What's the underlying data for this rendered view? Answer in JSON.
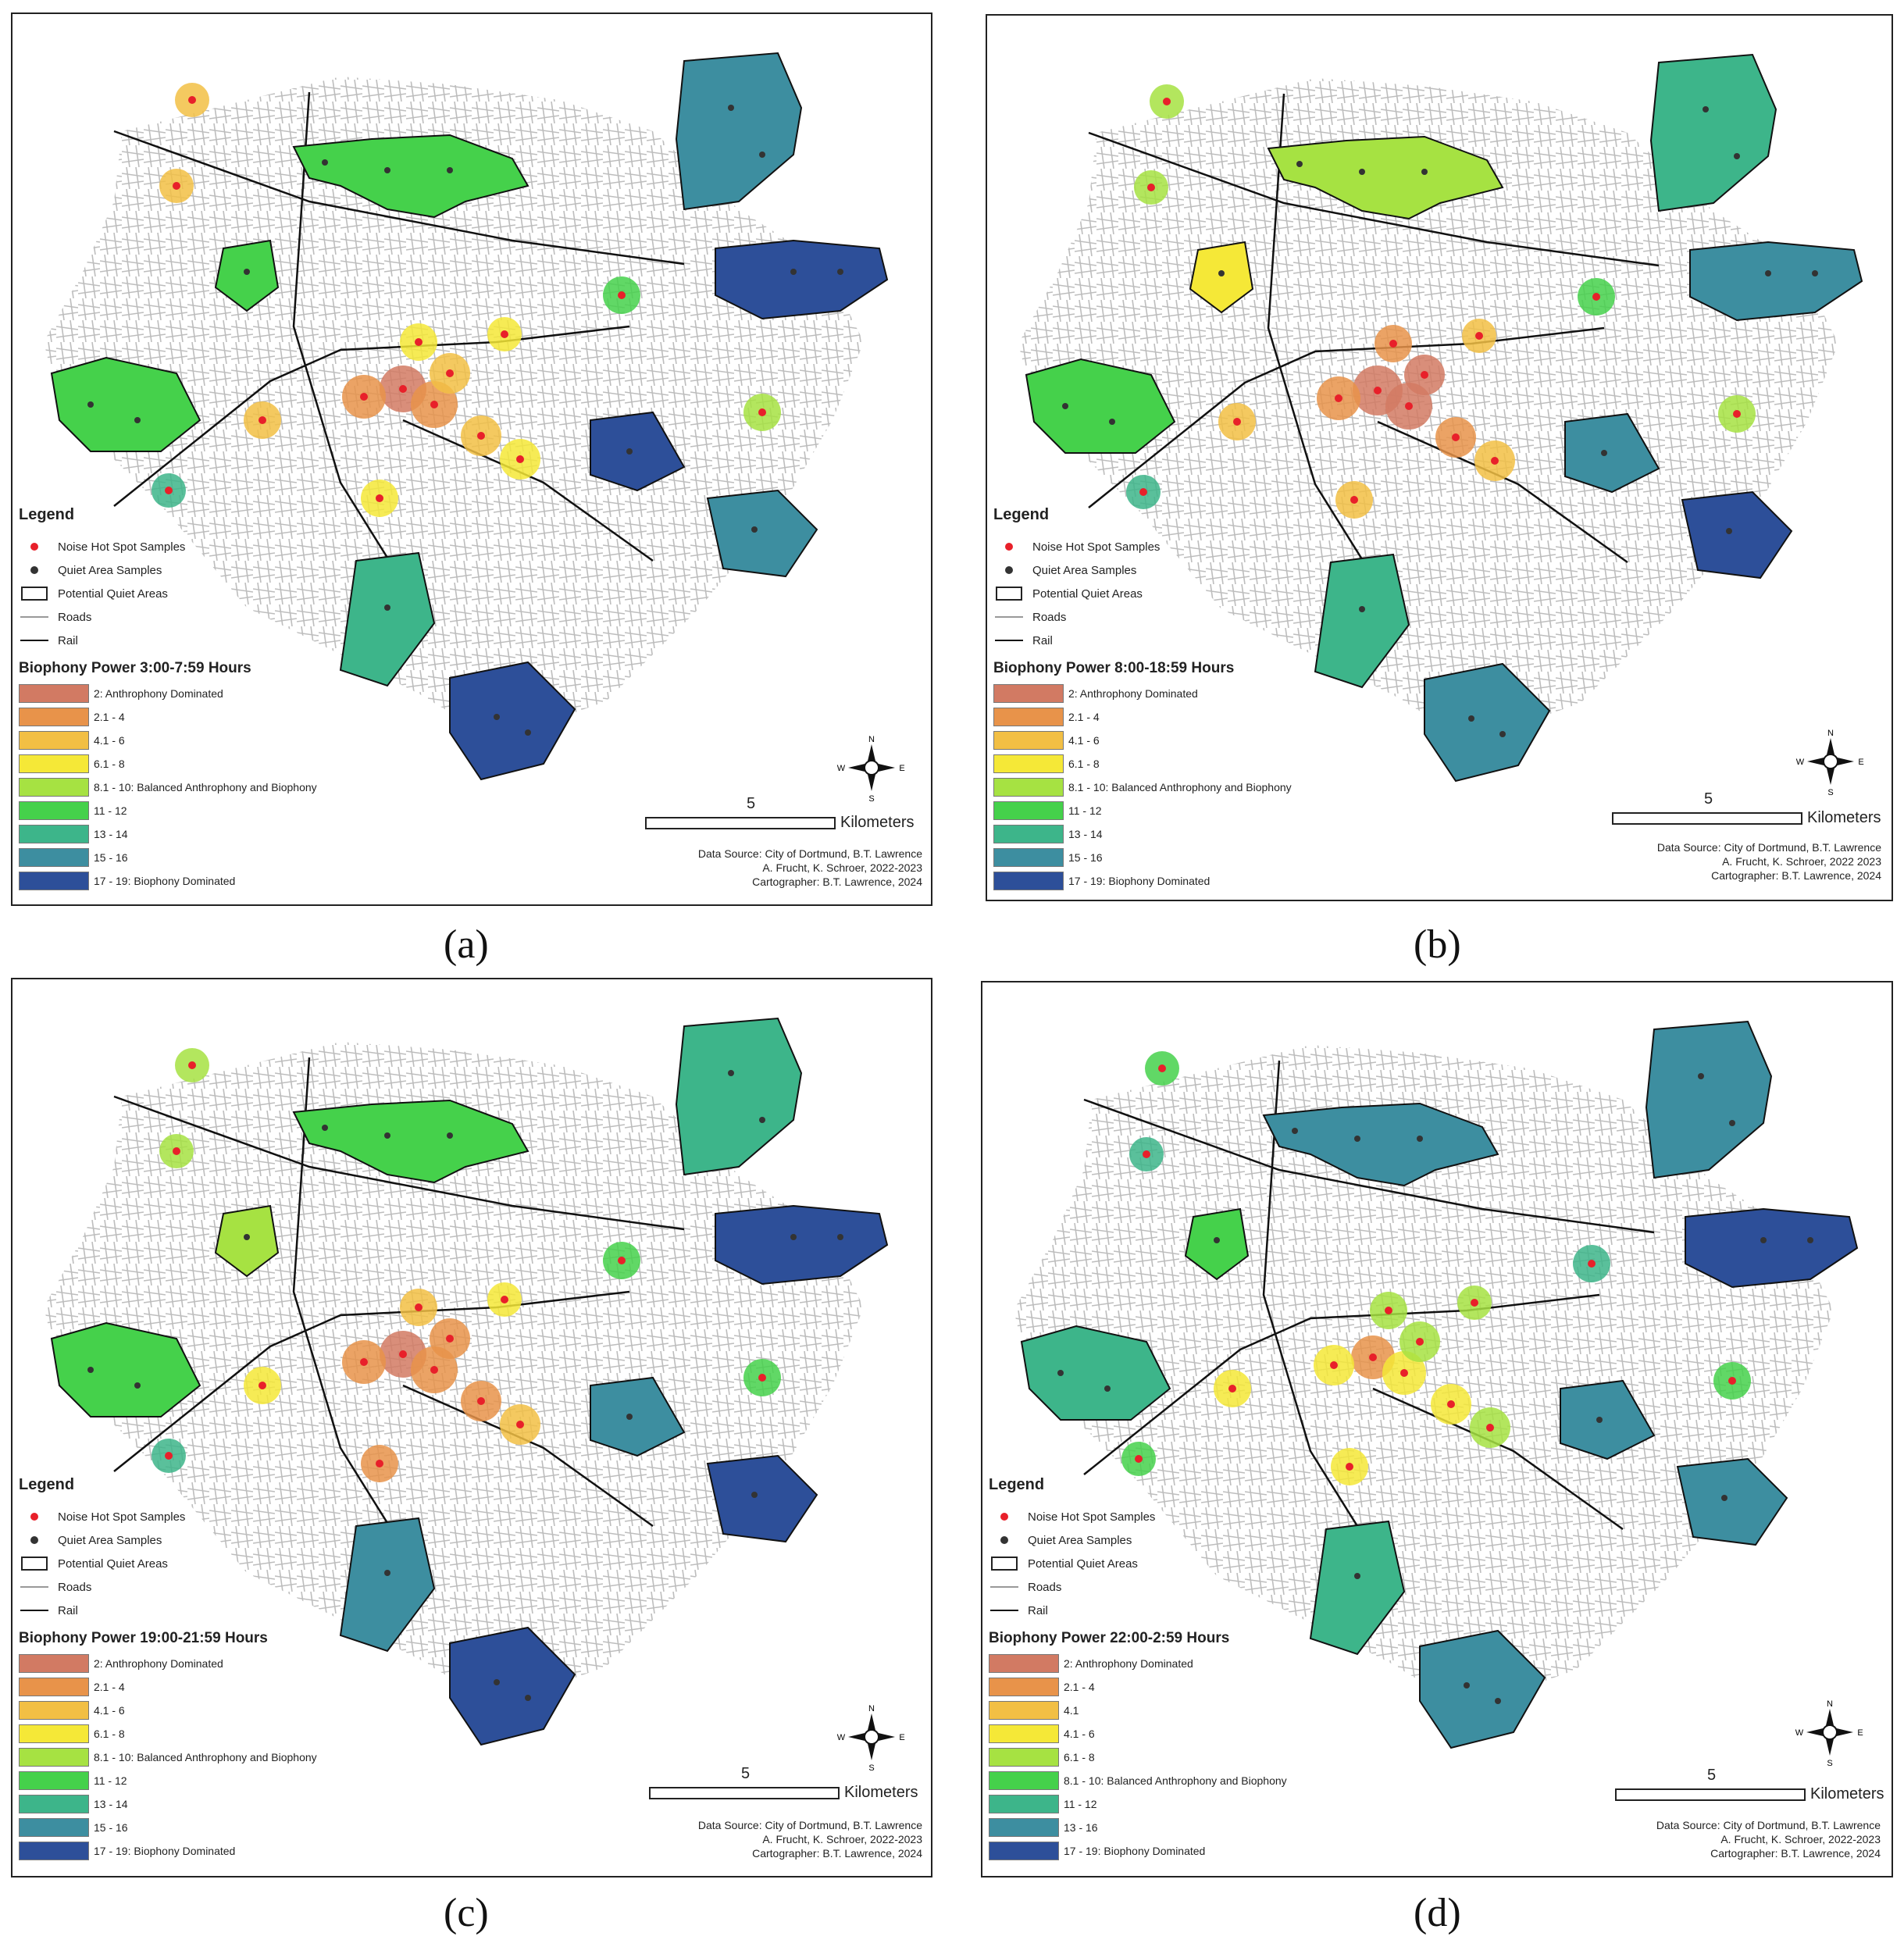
{
  "figure": {
    "panels": [
      {
        "id": "a",
        "caption": "(a)",
        "legend": {
          "title": "Legend",
          "items": [
            {
              "label": "Noise Hot Spot Samples",
              "color": "#e8202a",
              "symbol": "dot"
            },
            {
              "label": "Quiet Area Samples",
              "color": "#333333",
              "symbol": "dot"
            },
            {
              "label": "Potential Quiet Areas",
              "symbol": "box"
            },
            {
              "label": "Roads",
              "symbol": "road"
            },
            {
              "label": "Rail",
              "symbol": "rail"
            }
          ],
          "biophony_title": "Biophony Power 3:00-7:59 Hours",
          "classes": [
            {
              "label": "2: Anthrophony Dominated",
              "color": "#d27a63"
            },
            {
              "label": "2.1 - 4",
              "color": "#e8934a"
            },
            {
              "label": "4.1 - 6",
              "color": "#f2bf44"
            },
            {
              "label": "6.1 - 8",
              "color": "#f5e837"
            },
            {
              "label": "8.1 - 10: Balanced Anthrophony and Biophony",
              "color": "#a6e242"
            },
            {
              "label": "11 - 12",
              "color": "#45d14b"
            },
            {
              "label": "13 - 14",
              "color": "#3db58a"
            },
            {
              "label": "15 - 16",
              "color": "#3d8ea0"
            },
            {
              "label": "17 - 19: Biophony Dominated",
              "color": "#2d4f99"
            }
          ]
        },
        "scale": {
          "value": "5",
          "unit": "Kilometers"
        },
        "compass": {
          "n": "N",
          "s": "S",
          "e": "E",
          "w": "W"
        },
        "credits": [
          "Data Source: City of Dortmund, B.T. Lawrence",
          "A. Frucht, K. Schroer, 2022-2023",
          "Cartographer: B.T. Lawrence, 2024"
        ]
      },
      {
        "id": "b",
        "caption": "(b)",
        "legend": {
          "title": "Legend",
          "items": [
            {
              "label": "Noise Hot Spot Samples",
              "color": "#e8202a",
              "symbol": "dot"
            },
            {
              "label": "Quiet Area Samples",
              "color": "#333333",
              "symbol": "dot"
            },
            {
              "label": "Potential Quiet Areas",
              "symbol": "box"
            },
            {
              "label": "Roads",
              "symbol": "road"
            },
            {
              "label": "Rail",
              "symbol": "rail"
            }
          ],
          "biophony_title": "Biophony Power 8:00-18:59 Hours",
          "classes": [
            {
              "label": "2: Anthrophony Dominated",
              "color": "#d27a63"
            },
            {
              "label": "2.1 - 4",
              "color": "#e8934a"
            },
            {
              "label": "4.1 - 6",
              "color": "#f2bf44"
            },
            {
              "label": "6.1 - 8",
              "color": "#f5e837"
            },
            {
              "label": "8.1 - 10: Balanced Anthrophony and Biophony",
              "color": "#a6e242"
            },
            {
              "label": "11 - 12",
              "color": "#45d14b"
            },
            {
              "label": "13 - 14",
              "color": "#3db58a"
            },
            {
              "label": "15 - 16",
              "color": "#3d8ea0"
            },
            {
              "label": "17 - 19: Biophony Dominated",
              "color": "#2d4f99"
            }
          ]
        },
        "scale": {
          "value": "5",
          "unit": "Kilometers"
        },
        "compass": {
          "n": "N",
          "s": "S",
          "e": "E",
          "w": "W"
        },
        "credits": [
          "Data Source: City of Dortmund, B.T. Lawrence",
          "A. Frucht, K. Schroer, 2022 2023",
          "Cartographer: B.T. Lawrence, 2024"
        ]
      },
      {
        "id": "c",
        "caption": "(c)",
        "legend": {
          "title": "Legend",
          "items": [
            {
              "label": "Noise Hot Spot Samples",
              "color": "#e8202a",
              "symbol": "dot"
            },
            {
              "label": "Quiet Area Samples",
              "color": "#333333",
              "symbol": "dot"
            },
            {
              "label": "Potential Quiet Areas",
              "symbol": "box"
            },
            {
              "label": "Roads",
              "symbol": "road"
            },
            {
              "label": "Rail",
              "symbol": "rail"
            }
          ],
          "biophony_title": "Biophony Power 19:00-21:59 Hours",
          "classes": [
            {
              "label": "2: Anthrophony Dominated",
              "color": "#d27a63"
            },
            {
              "label": "2.1 - 4",
              "color": "#e8934a"
            },
            {
              "label": "4.1 - 6",
              "color": "#f2bf44"
            },
            {
              "label": "6.1 - 8",
              "color": "#f5e837"
            },
            {
              "label": "8.1 - 10: Balanced Anthrophony and Biophony",
              "color": "#a6e242"
            },
            {
              "label": "11 - 12",
              "color": "#45d14b"
            },
            {
              "label": "13 - 14",
              "color": "#3db58a"
            },
            {
              "label": "15 - 16",
              "color": "#3d8ea0"
            },
            {
              "label": "17 - 19: Biophony Dominated",
              "color": "#2d4f99"
            }
          ]
        },
        "scale": {
          "value": "5",
          "unit": "Kilometers"
        },
        "compass": {
          "n": "N",
          "s": "S",
          "e": "E",
          "w": "W"
        },
        "credits": [
          "Data Source: City of Dortmund, B.T. Lawrence",
          "A. Frucht, K. Schroer, 2022-2023",
          "Cartographer: B.T. Lawrence, 2024"
        ]
      },
      {
        "id": "d",
        "caption": "(d)",
        "legend": {
          "title": "Legend",
          "items": [
            {
              "label": "Noise Hot Spot Samples",
              "color": "#e8202a",
              "symbol": "dot"
            },
            {
              "label": "Quiet Area Samples",
              "color": "#333333",
              "symbol": "dot"
            },
            {
              "label": "Potential Quiet Areas",
              "symbol": "box"
            },
            {
              "label": "Roads",
              "symbol": "road"
            },
            {
              "label": "Rail",
              "symbol": "rail"
            }
          ],
          "biophony_title": "Biophony Power 22:00-2:59 Hours",
          "classes": [
            {
              "label": "2: Anthrophony Dominated",
              "color": "#d27a63"
            },
            {
              "label": "2.1 - 4",
              "color": "#e8934a"
            },
            {
              "label": "4.1",
              "color": "#f2bf44"
            },
            {
              "label": "4.1 - 6",
              "color": "#f5e837"
            },
            {
              "label": "6.1 - 8",
              "color": "#a6e242"
            },
            {
              "label": "8.1 - 10: Balanced Anthrophony and Biophony",
              "color": "#45d14b"
            },
            {
              "label": "11 - 12",
              "color": "#3db58a"
            },
            {
              "label": "13 - 16",
              "color": "#3d8ea0"
            },
            {
              "label": "17 - 19: Biophony Dominated",
              "color": "#2d4f99"
            }
          ]
        },
        "scale": {
          "value": "5",
          "unit": "Kilometers"
        },
        "compass": {
          "n": "N",
          "s": "S",
          "e": "E",
          "w": "W"
        },
        "credits": [
          "Data Source: City of Dortmund, B.T. Lawrence",
          "A. Frucht, K. Schroer, 2022-2023",
          "Cartographer: B.T. Lawrence, 2024"
        ]
      }
    ]
  }
}
